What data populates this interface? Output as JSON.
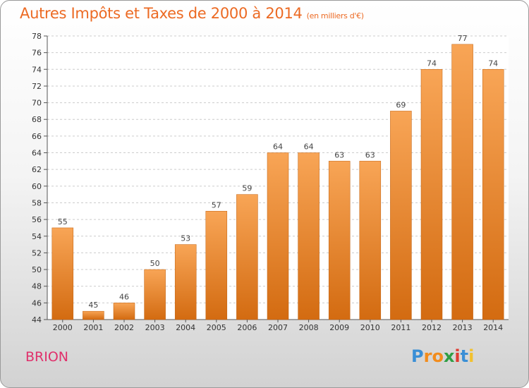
{
  "title": "Autres Impôts et Taxes de 2000 à 2014",
  "unit_label": "(en milliers d'€)",
  "commune": "BRION",
  "logo": {
    "text": "Proxiti"
  },
  "colors": {
    "bar_light": "#f8a556",
    "bar_dark": "#d36b11",
    "title": "#ec6a23",
    "commune": "#e0306b",
    "grid": "#cccccc"
  },
  "chart_data": {
    "type": "bar",
    "title": "Autres Impôts et Taxes de 2000 à 2014",
    "subtitle": "(en milliers d'€)",
    "categories": [
      "2000",
      "2001",
      "2002",
      "2003",
      "2004",
      "2005",
      "2006",
      "2007",
      "2008",
      "2009",
      "2010",
      "2011",
      "2012",
      "2013",
      "2014"
    ],
    "values": [
      55,
      45,
      46,
      50,
      53,
      57,
      59,
      64,
      64,
      63,
      63,
      69,
      74,
      77,
      74
    ],
    "ylim": [
      44,
      78
    ],
    "ytick_step": 2,
    "grid": true,
    "grid_style": "dashed horizontal",
    "data_labels": true
  }
}
